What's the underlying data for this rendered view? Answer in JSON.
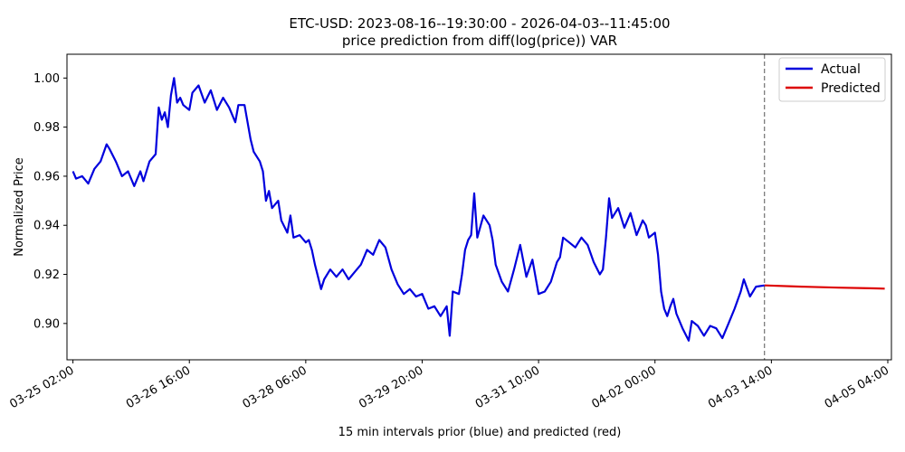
{
  "chart_data": {
    "type": "line",
    "title": "ETC-USD: 2023-08-16--19:30:00 - 2026-04-03--11:45:00",
    "subtitle": "price prediction from diff(log(price)) VAR",
    "xlabel": "15 min intervals prior (blue) and predicted (red)",
    "ylabel": "Normalized Price",
    "ylim": [
      0.8852,
      1.0097
    ],
    "xlim": [
      "03-25 00:03",
      "04-05 05:11"
    ],
    "x_ticks": [
      "03-25 02:00",
      "03-26 16:00",
      "03-28 06:00",
      "03-29 20:00",
      "03-31 10:00",
      "04-02 00:00",
      "04-03 14:00",
      "04-05 04:00"
    ],
    "y_ticks": [
      0.9,
      0.92,
      0.94,
      0.96,
      0.98,
      1.0
    ],
    "y_tick_labels": [
      "0.90",
      "0.92",
      "0.94",
      "0.96",
      "0.98",
      "1.00"
    ],
    "forecast_start": "04-03 11:45",
    "legend_position": "top-right",
    "grid": false,
    "series": [
      {
        "name": "Actual",
        "color": "#0000dd",
        "points": [
          [
            "03-25 02:00",
            0.962
          ],
          [
            "03-25 03:00",
            0.959
          ],
          [
            "03-25 05:00",
            0.96
          ],
          [
            "03-25 07:00",
            0.957
          ],
          [
            "03-25 09:00",
            0.963
          ],
          [
            "03-25 11:00",
            0.966
          ],
          [
            "03-25 13:00",
            0.973
          ],
          [
            "03-25 14:00",
            0.971
          ],
          [
            "03-25 16:00",
            0.966
          ],
          [
            "03-25 18:00",
            0.96
          ],
          [
            "03-25 20:00",
            0.962
          ],
          [
            "03-25 22:00",
            0.956
          ],
          [
            "03-26 00:00",
            0.962
          ],
          [
            "03-26 01:00",
            0.958
          ],
          [
            "03-26 03:00",
            0.966
          ],
          [
            "03-26 05:00",
            0.969
          ],
          [
            "03-26 06:00",
            0.988
          ],
          [
            "03-26 07:00",
            0.983
          ],
          [
            "03-26 08:00",
            0.986
          ],
          [
            "03-26 09:00",
            0.98
          ],
          [
            "03-26 10:00",
            0.993
          ],
          [
            "03-26 11:00",
            1.0
          ],
          [
            "03-26 12:00",
            0.99
          ],
          [
            "03-26 13:00",
            0.992
          ],
          [
            "03-26 14:00",
            0.989
          ],
          [
            "03-26 16:00",
            0.987
          ],
          [
            "03-26 17:00",
            0.994
          ],
          [
            "03-26 19:00",
            0.997
          ],
          [
            "03-26 21:00",
            0.99
          ],
          [
            "03-26 23:00",
            0.995
          ],
          [
            "03-27 01:00",
            0.987
          ],
          [
            "03-27 03:00",
            0.992
          ],
          [
            "03-27 05:00",
            0.988
          ],
          [
            "03-27 07:00",
            0.982
          ],
          [
            "03-27 08:00",
            0.989
          ],
          [
            "03-27 10:00",
            0.989
          ],
          [
            "03-27 12:00",
            0.975
          ],
          [
            "03-27 13:00",
            0.97
          ],
          [
            "03-27 15:00",
            0.966
          ],
          [
            "03-27 16:00",
            0.962
          ],
          [
            "03-27 17:00",
            0.95
          ],
          [
            "03-27 18:00",
            0.954
          ],
          [
            "03-27 19:00",
            0.947
          ],
          [
            "03-27 21:00",
            0.95
          ],
          [
            "03-27 22:00",
            0.942
          ],
          [
            "03-28 00:00",
            0.937
          ],
          [
            "03-28 01:00",
            0.944
          ],
          [
            "03-28 02:00",
            0.935
          ],
          [
            "03-28 04:00",
            0.936
          ],
          [
            "03-28 06:00",
            0.933
          ],
          [
            "03-28 07:00",
            0.934
          ],
          [
            "03-28 08:00",
            0.93
          ],
          [
            "03-28 09:00",
            0.924
          ],
          [
            "03-28 10:00",
            0.919
          ],
          [
            "03-28 11:00",
            0.914
          ],
          [
            "03-28 12:00",
            0.918
          ],
          [
            "03-28 14:00",
            0.922
          ],
          [
            "03-28 16:00",
            0.919
          ],
          [
            "03-28 18:00",
            0.922
          ],
          [
            "03-28 20:00",
            0.918
          ],
          [
            "03-28 22:00",
            0.921
          ],
          [
            "03-29 00:00",
            0.924
          ],
          [
            "03-29 02:00",
            0.93
          ],
          [
            "03-29 04:00",
            0.928
          ],
          [
            "03-29 06:00",
            0.934
          ],
          [
            "03-29 08:00",
            0.931
          ],
          [
            "03-29 10:00",
            0.922
          ],
          [
            "03-29 12:00",
            0.916
          ],
          [
            "03-29 14:00",
            0.912
          ],
          [
            "03-29 16:00",
            0.914
          ],
          [
            "03-29 18:00",
            0.911
          ],
          [
            "03-29 20:00",
            0.912
          ],
          [
            "03-29 22:00",
            0.906
          ],
          [
            "03-30 00:00",
            0.907
          ],
          [
            "03-30 02:00",
            0.903
          ],
          [
            "03-30 04:00",
            0.907
          ],
          [
            "03-30 05:00",
            0.895
          ],
          [
            "03-30 06:00",
            0.913
          ],
          [
            "03-30 08:00",
            0.912
          ],
          [
            "03-30 09:00",
            0.92
          ],
          [
            "03-30 10:00",
            0.93
          ],
          [
            "03-30 11:00",
            0.934
          ],
          [
            "03-30 12:00",
            0.936
          ],
          [
            "03-30 13:00",
            0.953
          ],
          [
            "03-30 14:00",
            0.935
          ],
          [
            "03-30 16:00",
            0.944
          ],
          [
            "03-30 18:00",
            0.94
          ],
          [
            "03-30 19:00",
            0.934
          ],
          [
            "03-30 20:00",
            0.924
          ],
          [
            "03-30 22:00",
            0.917
          ],
          [
            "03-31 00:00",
            0.913
          ],
          [
            "03-31 02:00",
            0.922
          ],
          [
            "03-31 04:00",
            0.932
          ],
          [
            "03-31 06:00",
            0.919
          ],
          [
            "03-31 08:00",
            0.926
          ],
          [
            "03-31 10:00",
            0.912
          ],
          [
            "03-31 12:00",
            0.913
          ],
          [
            "03-31 14:00",
            0.917
          ],
          [
            "03-31 16:00",
            0.925
          ],
          [
            "03-31 17:00",
            0.927
          ],
          [
            "03-31 18:00",
            0.935
          ],
          [
            "03-31 20:00",
            0.933
          ],
          [
            "03-31 22:00",
            0.931
          ],
          [
            "04-01 00:00",
            0.935
          ],
          [
            "04-01 02:00",
            0.932
          ],
          [
            "04-01 04:00",
            0.925
          ],
          [
            "04-01 06:00",
            0.92
          ],
          [
            "04-01 07:00",
            0.922
          ],
          [
            "04-01 08:00",
            0.935
          ],
          [
            "04-01 09:00",
            0.951
          ],
          [
            "04-01 10:00",
            0.943
          ],
          [
            "04-01 12:00",
            0.947
          ],
          [
            "04-01 14:00",
            0.939
          ],
          [
            "04-01 16:00",
            0.945
          ],
          [
            "04-01 18:00",
            0.936
          ],
          [
            "04-01 20:00",
            0.942
          ],
          [
            "04-01 21:00",
            0.94
          ],
          [
            "04-01 22:00",
            0.935
          ],
          [
            "04-02 00:00",
            0.937
          ],
          [
            "04-02 01:00",
            0.928
          ],
          [
            "04-02 02:00",
            0.913
          ],
          [
            "04-02 03:00",
            0.906
          ],
          [
            "04-02 04:00",
            0.903
          ],
          [
            "04-02 05:00",
            0.907
          ],
          [
            "04-02 06:00",
            0.91
          ],
          [
            "04-02 07:00",
            0.904
          ],
          [
            "04-02 09:00",
            0.898
          ],
          [
            "04-02 11:00",
            0.893
          ],
          [
            "04-02 12:00",
            0.901
          ],
          [
            "04-02 14:00",
            0.899
          ],
          [
            "04-02 16:00",
            0.895
          ],
          [
            "04-02 18:00",
            0.899
          ],
          [
            "04-02 20:00",
            0.898
          ],
          [
            "04-02 22:00",
            0.894
          ],
          [
            "04-03 00:00",
            0.9
          ],
          [
            "04-03 02:00",
            0.906
          ],
          [
            "04-03 04:00",
            0.913
          ],
          [
            "04-03 05:00",
            0.918
          ],
          [
            "04-03 07:00",
            0.911
          ],
          [
            "04-03 09:00",
            0.915
          ],
          [
            "04-03 11:45",
            0.9155
          ]
        ]
      },
      {
        "name": "Predicted",
        "color": "#dd0000",
        "points": [
          [
            "04-03 11:45",
            0.9155
          ],
          [
            "04-04 00:00",
            0.915
          ],
          [
            "04-04 12:00",
            0.9146
          ],
          [
            "04-05 00:00",
            0.9143
          ],
          [
            "04-05 03:00",
            0.9142
          ]
        ]
      }
    ]
  }
}
